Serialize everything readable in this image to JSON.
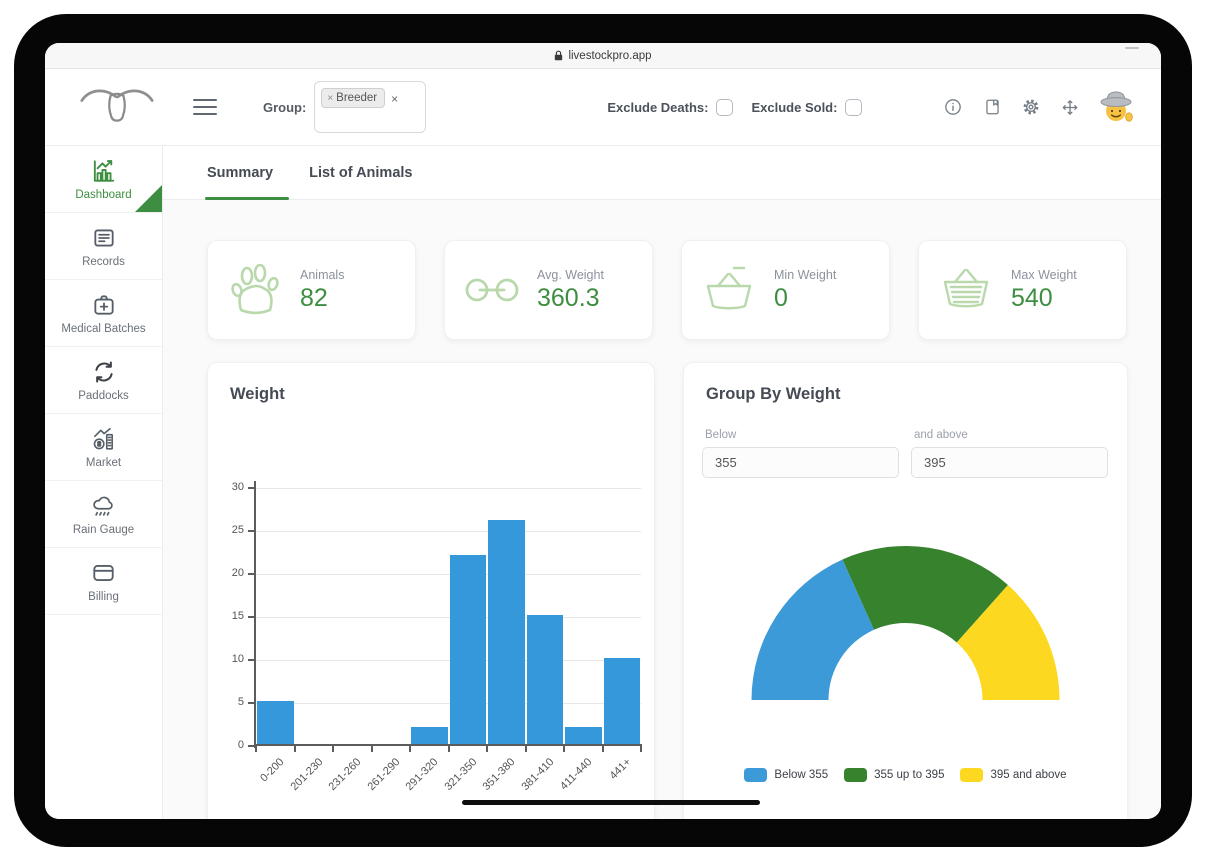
{
  "browser": {
    "url": "livestockpro.app"
  },
  "header": {
    "group_label": "Group:",
    "group_chip_label": "Breeder",
    "group_chip_remove": "×",
    "group_clear": "×",
    "exclude_deaths_label": "Exclude Deaths:",
    "exclude_deaths_checked": false,
    "exclude_sold_label": "Exclude Sold:",
    "exclude_sold_checked": false,
    "icons": [
      "info-icon",
      "notes-icon",
      "settings-gear-icon",
      "move-arrows-icon",
      "cowboy-avatar"
    ]
  },
  "sidebar": {
    "items": [
      {
        "label": "Dashboard",
        "icon": "dashboard-chart-icon",
        "active": true
      },
      {
        "label": "Records",
        "icon": "records-document-icon",
        "active": false
      },
      {
        "label": "Medical Batches",
        "icon": "medical-kit-icon",
        "active": false
      },
      {
        "label": "Paddocks",
        "icon": "refresh-arrows-icon",
        "active": false
      },
      {
        "label": "Market",
        "icon": "market-coins-chart-icon",
        "active": false
      },
      {
        "label": "Rain Gauge",
        "icon": "rain-cloud-icon",
        "active": false
      },
      {
        "label": "Billing",
        "icon": "credit-card-icon",
        "active": false
      }
    ]
  },
  "tabs": [
    {
      "label": "Summary",
      "active": true
    },
    {
      "label": "List of Animals",
      "active": false
    }
  ],
  "stats": [
    {
      "label": "Animals",
      "value": "82",
      "icon": "paw-icon"
    },
    {
      "label": "Avg. Weight",
      "value": "360.3",
      "icon": "linked-rings-icon"
    },
    {
      "label": "Min Weight",
      "value": "0",
      "icon": "basket-minus-icon"
    },
    {
      "label": "Max Weight",
      "value": "540",
      "icon": "basket-full-icon"
    }
  ],
  "group_panel": {
    "below_label": "Below",
    "below_value": "355",
    "above_label": "and above",
    "above_value": "395"
  },
  "colors": {
    "accent_green": "#3e8e41",
    "pale_green_icon": "#b9d8ab",
    "bar_blue": "#3598db",
    "gauge_blue": "#3d9ad8",
    "gauge_green": "#37832d",
    "gauge_yellow": "#fdd821"
  },
  "chart_data": [
    {
      "type": "bar",
      "title": "Weight",
      "categories": [
        "0-200",
        "201-230",
        "231-260",
        "261-290",
        "291-320",
        "321-350",
        "351-380",
        "381-410",
        "411-440",
        "441+"
      ],
      "values": [
        5,
        0,
        0,
        0,
        2,
        22,
        26,
        15,
        2,
        10
      ],
      "xlabel": "",
      "ylabel": "",
      "ylim": [
        0,
        30
      ],
      "yticks": [
        0,
        5,
        10,
        15,
        20,
        25,
        30
      ],
      "grid": "horizontal",
      "bar_color": "#3598db",
      "legend_position": "none"
    },
    {
      "type": "pie",
      "variant": "half-donut-gauge",
      "title": "Group By Weight",
      "labels": [
        "Below 355",
        "355 up to 395",
        "395 and above"
      ],
      "values": [
        30,
        30,
        22
      ],
      "total_animals": 82,
      "colors": [
        "#3d9ad8",
        "#37832d",
        "#fdd821"
      ],
      "legend": [
        "Below 355",
        "355 up to 395",
        "395 and above"
      ],
      "legend_position": "bottom"
    }
  ]
}
